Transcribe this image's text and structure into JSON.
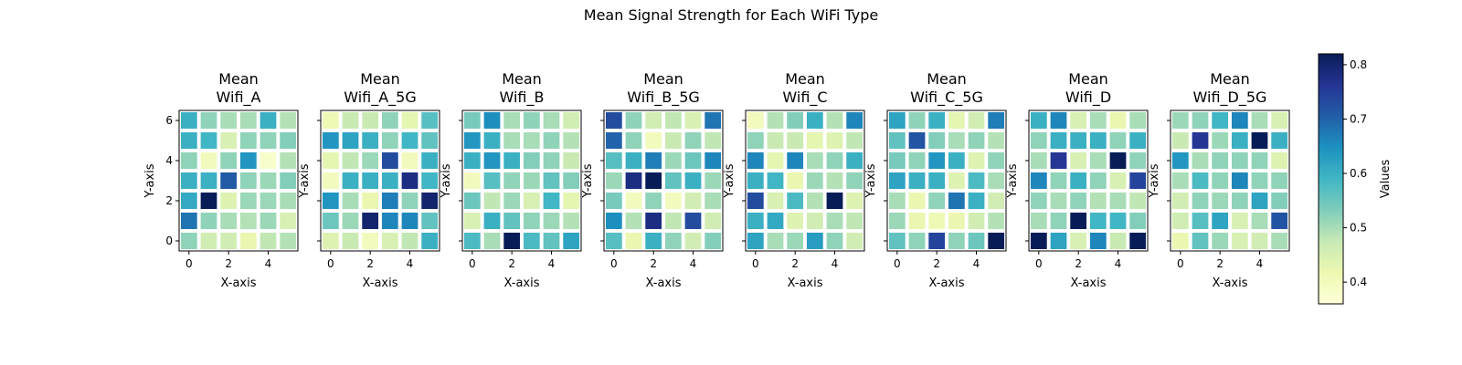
{
  "chart_data": {
    "type": "heatmap",
    "suptitle": "Mean Signal Strength for Each WiFi Type",
    "xlabel": "X-axis",
    "ylabel": "Y-axis",
    "x_ticks": [
      0,
      2,
      4
    ],
    "y_ticks": [
      0,
      2,
      4,
      6
    ],
    "colormap": "YlGnBu",
    "colorbar": {
      "label": "Values",
      "min": 0.36,
      "max": 0.82,
      "ticks": [
        0.4,
        0.5,
        0.6,
        0.7,
        0.8
      ]
    },
    "panels": [
      {
        "title": [
          "Mean",
          "Wifi_A"
        ],
        "values": [
          [
            0.52,
            0.46,
            0.46,
            0.42,
            0.48,
            0.49
          ],
          [
            0.68,
            0.52,
            0.5,
            0.49,
            0.51,
            0.45
          ],
          [
            0.61,
            0.82,
            0.44,
            0.51,
            0.51,
            0.5
          ],
          [
            0.6,
            0.6,
            0.71,
            0.52,
            0.51,
            0.53
          ],
          [
            0.52,
            0.4,
            0.52,
            0.64,
            0.38,
            0.49
          ],
          [
            0.6,
            0.59,
            0.45,
            0.52,
            0.52,
            0.53
          ],
          [
            0.6,
            0.52,
            0.5,
            0.5,
            0.6,
            0.49
          ]
        ]
      },
      {
        "title": [
          "Mean",
          "Wifi_A_5G"
        ],
        "values": [
          [
            0.44,
            0.47,
            0.4,
            0.45,
            0.48,
            0.6
          ],
          [
            0.55,
            0.51,
            0.8,
            0.66,
            0.66,
            0.56
          ],
          [
            0.64,
            0.5,
            0.42,
            0.67,
            0.52,
            0.8
          ],
          [
            0.4,
            0.6,
            0.6,
            0.6,
            0.78,
            0.59
          ],
          [
            0.43,
            0.48,
            0.51,
            0.73,
            0.4,
            0.6
          ],
          [
            0.64,
            0.62,
            0.6,
            0.52,
            0.59,
            0.56
          ],
          [
            0.41,
            0.47,
            0.47,
            0.52,
            0.43,
            0.57
          ]
        ]
      },
      {
        "title": [
          "Mean",
          "Wifi_B"
        ],
        "values": [
          [
            0.58,
            0.5,
            0.82,
            0.58,
            0.56,
            0.62
          ],
          [
            0.45,
            0.6,
            0.56,
            0.52,
            0.51,
            0.49
          ],
          [
            0.55,
            0.48,
            0.51,
            0.45,
            0.59,
            0.43
          ],
          [
            0.4,
            0.57,
            0.52,
            0.51,
            0.56,
            0.53
          ],
          [
            0.6,
            0.64,
            0.6,
            0.53,
            0.52,
            0.47
          ],
          [
            0.64,
            0.6,
            0.5,
            0.5,
            0.52,
            0.49
          ],
          [
            0.54,
            0.65,
            0.5,
            0.52,
            0.5,
            0.46
          ]
        ]
      },
      {
        "title": [
          "Mean",
          "Wifi_B_5G"
        ],
        "values": [
          [
            0.57,
            0.42,
            0.6,
            0.52,
            0.46,
            0.53
          ],
          [
            0.65,
            0.49,
            0.78,
            0.48,
            0.73,
            0.46
          ],
          [
            0.54,
            0.4,
            0.52,
            0.4,
            0.46,
            0.5
          ],
          [
            0.51,
            0.78,
            0.82,
            0.56,
            0.6,
            0.51
          ],
          [
            0.57,
            0.6,
            0.67,
            0.51,
            0.55,
            0.66
          ],
          [
            0.7,
            0.52,
            0.4,
            0.47,
            0.52,
            0.48
          ],
          [
            0.73,
            0.52,
            0.46,
            0.48,
            0.45,
            0.68
          ]
        ]
      },
      {
        "title": [
          "Mean",
          "Wifi_C"
        ],
        "values": [
          [
            0.62,
            0.5,
            0.51,
            0.63,
            0.52,
            0.46
          ],
          [
            0.6,
            0.61,
            0.44,
            0.46,
            0.5,
            0.48
          ],
          [
            0.73,
            0.45,
            0.58,
            0.49,
            0.82,
            0.44
          ],
          [
            0.6,
            0.59,
            0.42,
            0.51,
            0.49,
            0.52
          ],
          [
            0.66,
            0.43,
            0.66,
            0.5,
            0.52,
            0.6
          ],
          [
            0.52,
            0.47,
            0.47,
            0.43,
            0.44,
            0.48
          ],
          [
            0.4,
            0.49,
            0.53,
            0.6,
            0.49,
            0.66
          ]
        ]
      },
      {
        "title": [
          "Mean",
          "Wifi_C_5G"
        ],
        "values": [
          [
            0.56,
            0.52,
            0.74,
            0.52,
            0.55,
            0.82
          ],
          [
            0.51,
            0.42,
            0.41,
            0.42,
            0.46,
            0.49
          ],
          [
            0.5,
            0.42,
            0.52,
            0.68,
            0.6,
            0.46
          ],
          [
            0.62,
            0.6,
            0.6,
            0.44,
            0.58,
            0.5
          ],
          [
            0.54,
            0.52,
            0.64,
            0.6,
            0.44,
            0.52
          ],
          [
            0.56,
            0.72,
            0.53,
            0.5,
            0.52,
            0.49
          ],
          [
            0.62,
            0.52,
            0.6,
            0.43,
            0.46,
            0.67
          ]
        ]
      },
      {
        "title": [
          "Mean",
          "Wifi_D"
        ],
        "values": [
          [
            0.82,
            0.62,
            0.45,
            0.66,
            0.47,
            0.82
          ],
          [
            0.5,
            0.52,
            0.82,
            0.59,
            0.59,
            0.53
          ],
          [
            0.52,
            0.5,
            0.52,
            0.49,
            0.5,
            0.48
          ],
          [
            0.66,
            0.52,
            0.6,
            0.52,
            0.45,
            0.74
          ],
          [
            0.5,
            0.76,
            0.45,
            0.5,
            0.82,
            0.52
          ],
          [
            0.52,
            0.6,
            0.6,
            0.6,
            0.52,
            0.6
          ],
          [
            0.6,
            0.66,
            0.45,
            0.5,
            0.42,
            0.5
          ]
        ]
      },
      {
        "title": [
          "Mean",
          "Wifi_D_5G"
        ],
        "values": [
          [
            0.42,
            0.56,
            0.51,
            0.45,
            0.46,
            0.5
          ],
          [
            0.46,
            0.57,
            0.62,
            0.45,
            0.5,
            0.72
          ],
          [
            0.46,
            0.52,
            0.51,
            0.52,
            0.62,
            0.53
          ],
          [
            0.5,
            0.58,
            0.52,
            0.66,
            0.52,
            0.52
          ],
          [
            0.64,
            0.5,
            0.52,
            0.52,
            0.52,
            0.44
          ],
          [
            0.47,
            0.76,
            0.51,
            0.6,
            0.82,
            0.6
          ],
          [
            0.51,
            0.52,
            0.59,
            0.66,
            0.5,
            0.45
          ]
        ]
      }
    ]
  }
}
